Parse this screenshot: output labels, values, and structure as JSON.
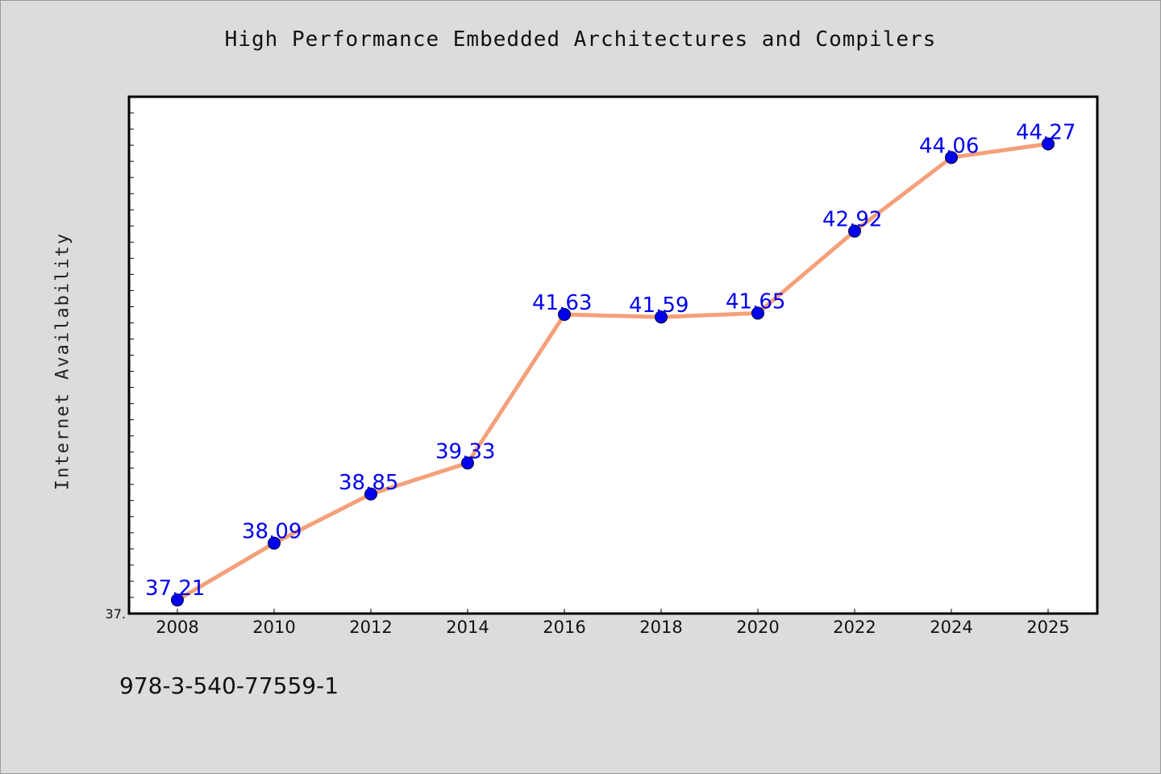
{
  "title": "High Performance Embedded Architectures and Compilers",
  "footer_text": "978-3-540-77559-1",
  "colors": {
    "background": "#dcdcdc",
    "plot_background": "#ffffff",
    "line": "#f4a07a",
    "marker": "#0000ee",
    "data_label": "#0000ee"
  },
  "chart_data": {
    "type": "line",
    "title": "High Performance Embedded Architectures and Compilers",
    "xlabel": "",
    "ylabel": "Internet Availability",
    "categories": [
      "2008",
      "2010",
      "2012",
      "2014",
      "2016",
      "2018",
      "2020",
      "2022",
      "2024",
      "2025"
    ],
    "series": [
      {
        "values": [
          37.21,
          38.09,
          38.85,
          39.33,
          41.63,
          41.59,
          41.65,
          42.92,
          44.06,
          44.27
        ]
      }
    ],
    "data_labels": [
      "37.21",
      "38.09",
      "38.85",
      "39.33",
      "41.63",
      "41.59",
      "41.65",
      "42.92",
      "44.06",
      "44.27"
    ],
    "ylim": [
      37.0,
      45.0
    ],
    "y_tick_label_min": "37.",
    "grid": false,
    "legend": "none"
  }
}
